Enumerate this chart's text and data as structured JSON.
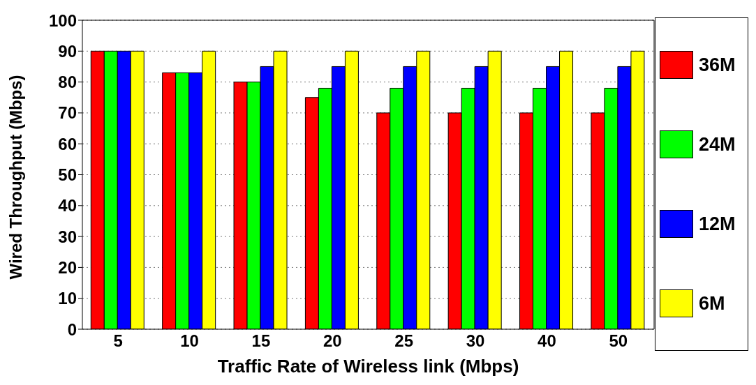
{
  "chart_data": {
    "type": "bar",
    "xlabel": "Traffic Rate of Wireless link (Mbps)",
    "ylabel": "Wired Throughput (Mbps)",
    "categories": [
      "5",
      "10",
      "15",
      "20",
      "25",
      "30",
      "40",
      "50"
    ],
    "series": [
      {
        "name": "36M",
        "color": "#ff0000",
        "values": [
          90,
          83,
          80,
          75,
          70,
          70,
          70,
          70
        ]
      },
      {
        "name": "24M",
        "color": "#00ff00",
        "values": [
          90,
          83,
          80,
          78,
          78,
          78,
          78,
          78
        ]
      },
      {
        "name": "12M",
        "color": "#0000ff",
        "values": [
          90,
          83,
          85,
          85,
          85,
          85,
          85,
          85
        ]
      },
      {
        "name": "6M",
        "color": "#ffff00",
        "values": [
          90,
          90,
          90,
          90,
          90,
          90,
          90,
          90
        ]
      }
    ],
    "ylim": [
      0,
      100
    ],
    "yticks": [
      0,
      10,
      20,
      30,
      40,
      50,
      60,
      70,
      80,
      90,
      100
    ],
    "grid": "y",
    "legend": "right"
  }
}
